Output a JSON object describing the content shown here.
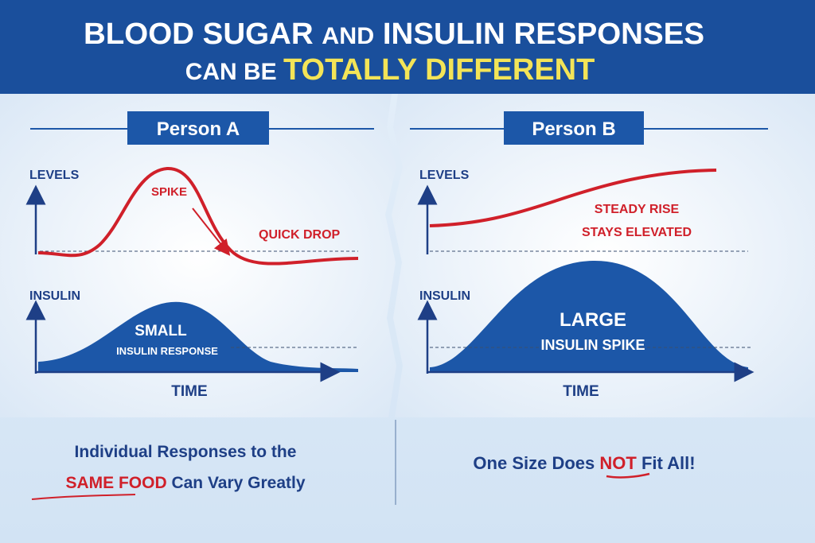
{
  "header": {
    "title_part1": "BLOOD SUGAR ",
    "title_part2": "AND",
    "title_part3": " INSULIN RESPONSES",
    "subtitle_part1": "CAN BE ",
    "subtitle_highlight": "TOTALLY DIFFERENT"
  },
  "colors": {
    "header_blue": "#1a4f9c",
    "dark_blue": "#1e3f86",
    "glucose_red": "#d0202a",
    "insulin_blue": "#1c57a8",
    "highlight_yellow": "#f3e457"
  },
  "panels": [
    {
      "label": "Person A",
      "levels_label": "LEVELS",
      "insulin_label": "INSULIN",
      "time_label": "TIME",
      "glucose_annotations": [
        "SPIKE",
        "QUICK DROP"
      ],
      "insulin_annotations": [
        "SMALL",
        "INSULIN RESPONSE"
      ]
    },
    {
      "label": "Person B",
      "levels_label": "LEVELS",
      "insulin_label": "INSULIN",
      "time_label": "TIME",
      "glucose_annotations": [
        "STEADY RISE",
        "STAYS ELEVATED"
      ],
      "insulin_annotations": [
        "LARGE",
        "INSULIN SPIKE"
      ]
    }
  ],
  "footer": {
    "left_line1": "Individual Responses to the",
    "left_highlight": "SAME FOOD",
    "left_line2_rest": " Can Vary Greatly",
    "right_part1": "One Size Does ",
    "right_highlight": "NOT",
    "right_part2": " Fit All!"
  }
}
